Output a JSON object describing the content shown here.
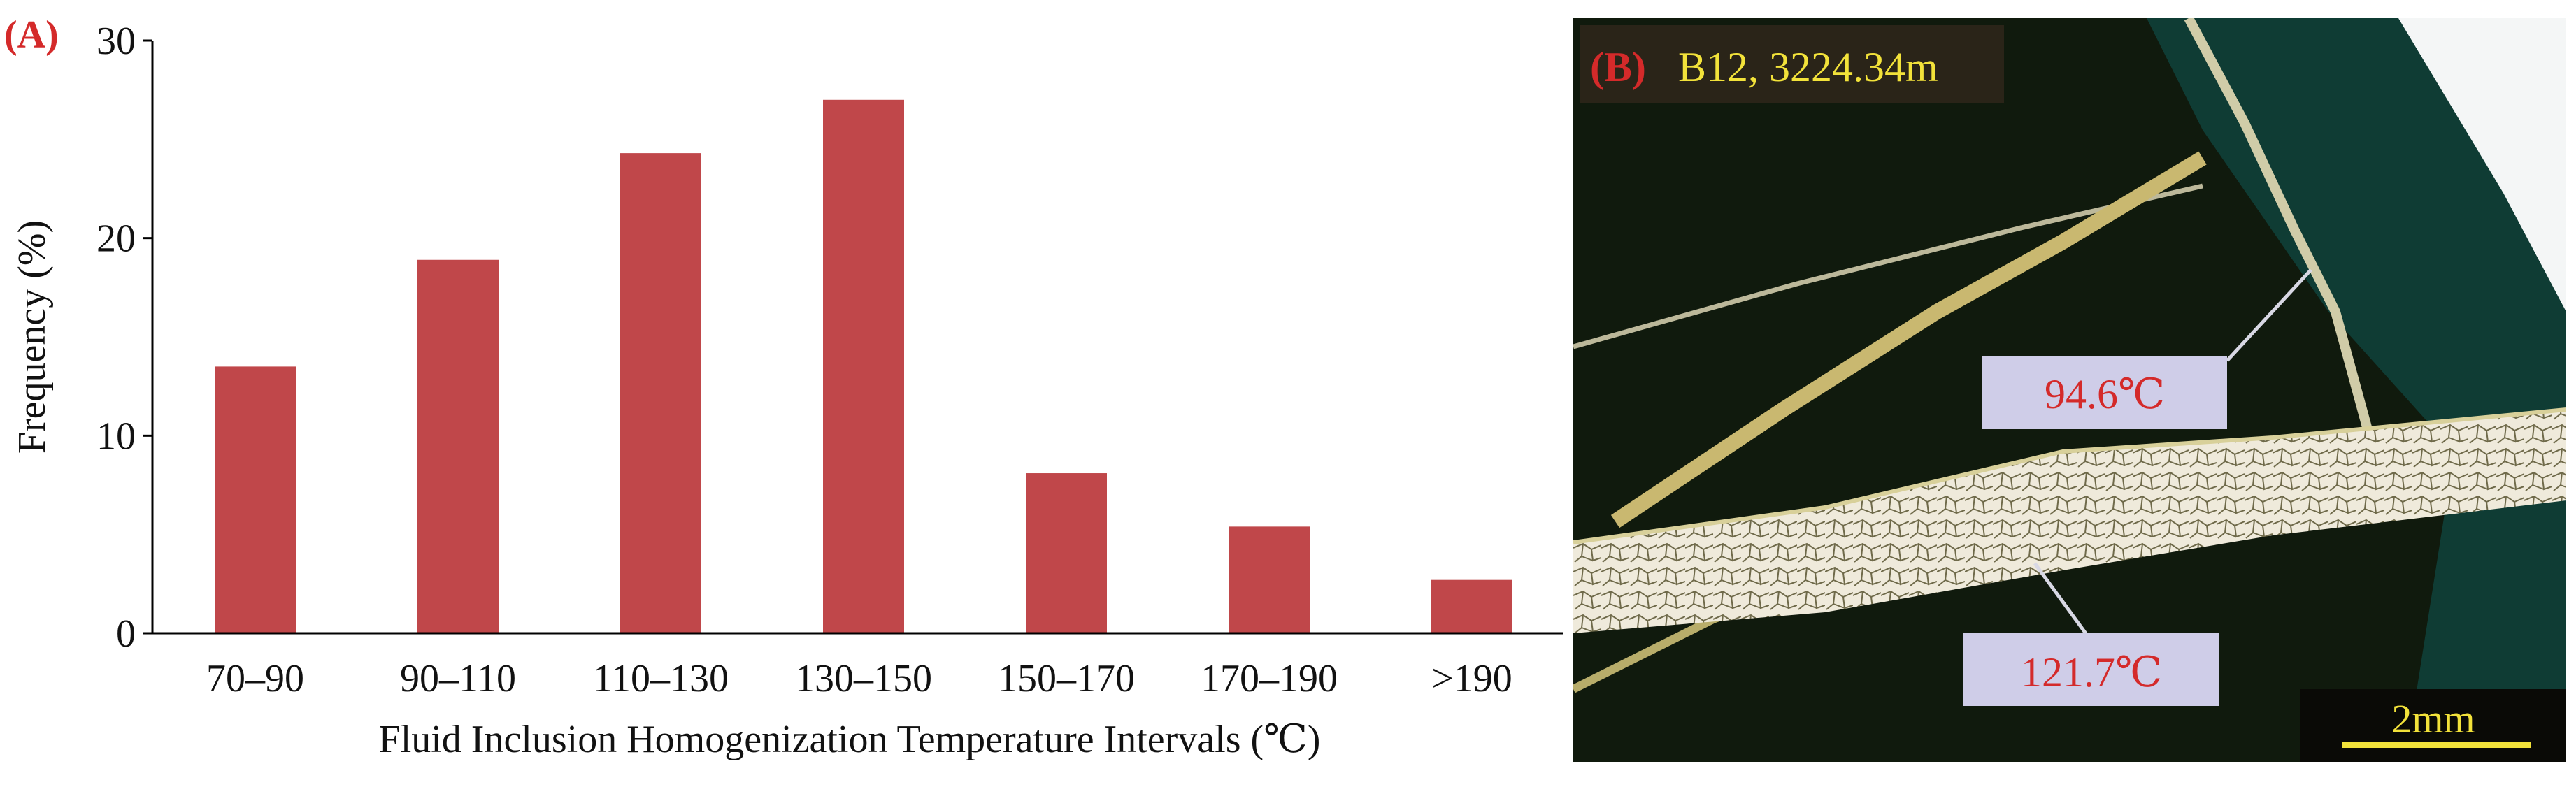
{
  "panel_a": {
    "panel_label": "(A)",
    "chart_data": {
      "type": "bar",
      "categories": [
        "70–90",
        "90–110",
        "110–130",
        "130–150",
        "150–170",
        "170–190",
        ">190"
      ],
      "values": [
        13.5,
        18.9,
        24.3,
        27.0,
        8.1,
        5.4,
        2.7
      ],
      "xlabel": "Fluid Inclusion Homogenization Temperature Intervals (℃)",
      "ylabel": "Frequency (%)",
      "ylim": [
        0,
        30
      ],
      "yticks": [
        "0",
        "10",
        "20",
        "30"
      ],
      "grid": false,
      "bar_color": "#c0474a"
    }
  },
  "panel_b": {
    "panel_label": "(B)",
    "sample_label": "B12, 3224.34m",
    "annotation_1": "94.6℃",
    "annotation_2": "121.7℃",
    "scale_bar_label": "2mm",
    "label_color": "#d42a2a",
    "sample_color": "#f2e23a",
    "scale_color": "#f2e23a",
    "annotation_bg": "#cfcde8"
  }
}
